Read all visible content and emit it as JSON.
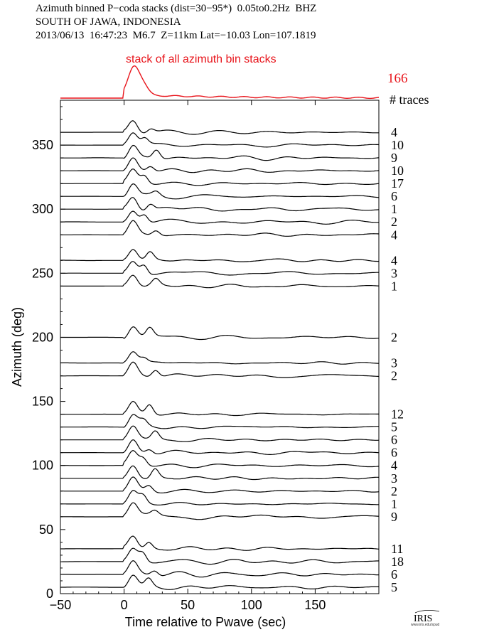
{
  "header": {
    "line1": "Azimuth binned P−coda stacks (dist=30−95*)  0.05to0.2Hz  BHZ",
    "line2": "SOUTH OF JAWA, INDONESIA",
    "line3": "2013/06/13  16:47:23  M6.7  Z=11km Lat=−10.03 Lon=107.1819"
  },
  "chart_data": {
    "type": "line",
    "title": "",
    "xlabel": "Time relative to Pwave (sec)",
    "ylabel": "Azimuth (deg)",
    "xlim": [
      -50,
      200
    ],
    "ylim": [
      0,
      385
    ],
    "x_ticks": [
      -50,
      0,
      50,
      100,
      150
    ],
    "y_ticks": [
      0,
      50,
      100,
      150,
      200,
      250,
      300,
      350
    ],
    "grid": false,
    "stack": {
      "label": "stack of all azimuth bin stacks",
      "count": "166",
      "count_label": "# traces",
      "color": "#e8141b"
    },
    "series": [
      {
        "azimuth": 5,
        "traces": "5"
      },
      {
        "azimuth": 15,
        "traces": "6"
      },
      {
        "azimuth": 25,
        "traces": "18"
      },
      {
        "azimuth": 35,
        "traces": "11"
      },
      {
        "azimuth": 60,
        "traces": "9"
      },
      {
        "azimuth": 70,
        "traces": "1"
      },
      {
        "azimuth": 80,
        "traces": "2"
      },
      {
        "azimuth": 90,
        "traces": "3"
      },
      {
        "azimuth": 100,
        "traces": "4"
      },
      {
        "azimuth": 110,
        "traces": "6"
      },
      {
        "azimuth": 120,
        "traces": "6"
      },
      {
        "azimuth": 130,
        "traces": "5"
      },
      {
        "azimuth": 140,
        "traces": "12"
      },
      {
        "azimuth": 170,
        "traces": "2"
      },
      {
        "azimuth": 180,
        "traces": "3"
      },
      {
        "azimuth": 200,
        "traces": "2"
      },
      {
        "azimuth": 240,
        "traces": "1"
      },
      {
        "azimuth": 250,
        "traces": "3"
      },
      {
        "azimuth": 260,
        "traces": "4"
      },
      {
        "azimuth": 280,
        "traces": "4"
      },
      {
        "azimuth": 290,
        "traces": "2"
      },
      {
        "azimuth": 300,
        "traces": "1"
      },
      {
        "azimuth": 310,
        "traces": "6"
      },
      {
        "azimuth": 320,
        "traces": "17"
      },
      {
        "azimuth": 330,
        "traces": "10"
      },
      {
        "azimuth": 340,
        "traces": "9"
      },
      {
        "azimuth": 350,
        "traces": "10"
      },
      {
        "azimuth": 360,
        "traces": "4"
      }
    ],
    "line_color": "#000000"
  },
  "logo": {
    "text": "IRIS",
    "sub": "www.iris.edu/spud"
  }
}
